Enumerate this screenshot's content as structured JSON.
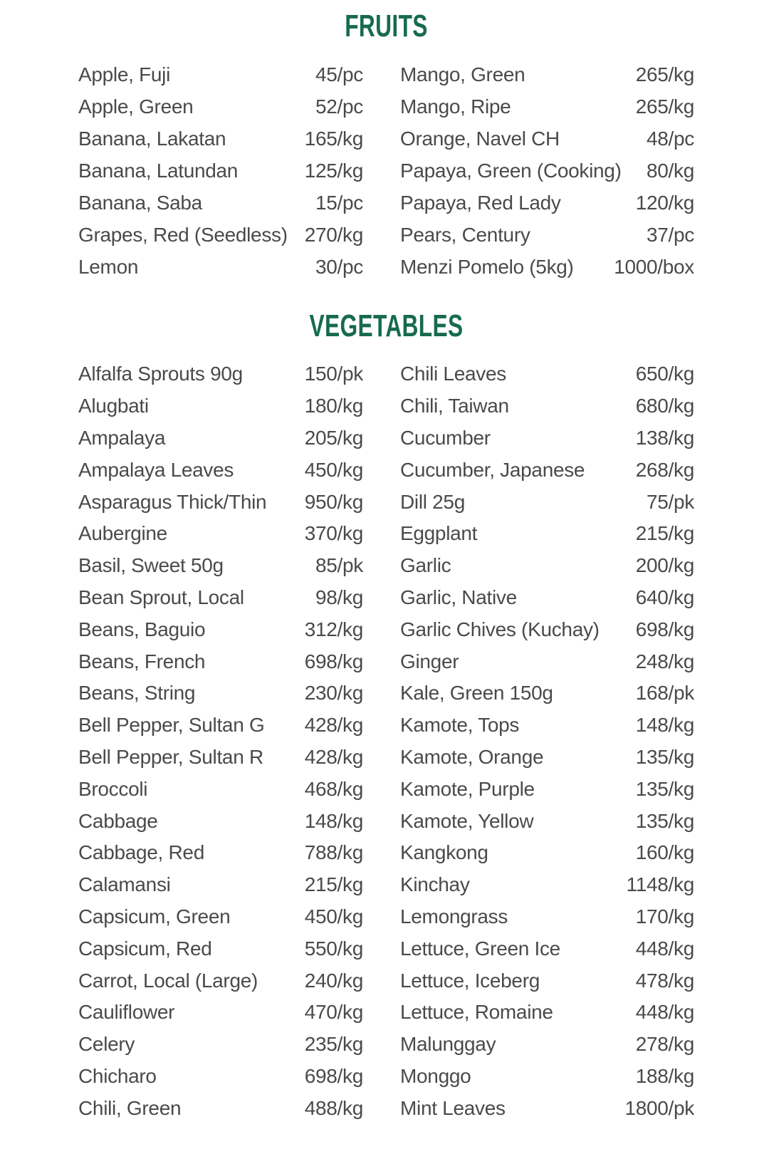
{
  "colors": {
    "accent_green": "#176B4D",
    "item_text_gray": "#4A4A4C",
    "background": "#FFFFFF"
  },
  "sections": [
    {
      "title": "FRUITS",
      "columns": {
        "left": [
          {
            "name": "Apple, Fuji",
            "price": "45/pc"
          },
          {
            "name": "Apple, Green",
            "price": "52/pc"
          },
          {
            "name": "Banana, Lakatan",
            "price": "165/kg"
          },
          {
            "name": "Banana, Latundan",
            "price": "125/kg"
          },
          {
            "name": "Banana, Saba",
            "price": "15/pc"
          },
          {
            "name": "Grapes, Red (Seedless)",
            "price": "270/kg"
          },
          {
            "name": "Lemon",
            "price": "30/pc"
          }
        ],
        "right": [
          {
            "name": "Mango, Green",
            "price": "265/kg"
          },
          {
            "name": "Mango, Ripe",
            "price": "265/kg"
          },
          {
            "name": "Orange, Navel CH",
            "price": "48/pc"
          },
          {
            "name": "Papaya, Green (Cooking)",
            "price": "80/kg"
          },
          {
            "name": "Papaya, Red Lady",
            "price": "120/kg"
          },
          {
            "name": "Pears, Century",
            "price": "37/pc"
          },
          {
            "name": "Menzi Pomelo (5kg)",
            "price": "1000/box"
          }
        ]
      }
    },
    {
      "title": "VEGETABLES",
      "columns": {
        "left": [
          {
            "name": "Alfalfa Sprouts 90g",
            "price": "150/pk"
          },
          {
            "name": "Alugbati",
            "price": "180/kg"
          },
          {
            "name": "Ampalaya",
            "price": "205/kg"
          },
          {
            "name": "Ampalaya Leaves",
            "price": "450/kg"
          },
          {
            "name": "Asparagus Thick/Thin",
            "price": "950/kg"
          },
          {
            "name": "Aubergine",
            "price": "370/kg"
          },
          {
            "name": "Basil, Sweet 50g",
            "price": "85/pk"
          },
          {
            "name": "Bean Sprout, Local",
            "price": "98/kg"
          },
          {
            "name": "Beans, Baguio",
            "price": "312/kg"
          },
          {
            "name": "Beans, French",
            "price": "698/kg"
          },
          {
            "name": "Beans, String",
            "price": "230/kg"
          },
          {
            "name": "Bell Pepper, Sultan G",
            "price": "428/kg"
          },
          {
            "name": "Bell Pepper, Sultan R",
            "price": "428/kg"
          },
          {
            "name": "Broccoli",
            "price": "468/kg"
          },
          {
            "name": "Cabbage",
            "price": "148/kg"
          },
          {
            "name": "Cabbage, Red",
            "price": "788/kg"
          },
          {
            "name": "Calamansi",
            "price": "215/kg"
          },
          {
            "name": "Capsicum, Green",
            "price": "450/kg"
          },
          {
            "name": "Capsicum, Red",
            "price": "550/kg"
          },
          {
            "name": "Carrot, Local (Large)",
            "price": "240/kg"
          },
          {
            "name": "Cauliflower",
            "price": "470/kg"
          },
          {
            "name": "Celery",
            "price": "235/kg"
          },
          {
            "name": "Chicharo",
            "price": "698/kg"
          },
          {
            "name": "Chili, Green",
            "price": "488/kg"
          }
        ],
        "right": [
          {
            "name": "Chili Leaves",
            "price": "650/kg"
          },
          {
            "name": "Chili, Taiwan",
            "price": "680/kg"
          },
          {
            "name": "Cucumber",
            "price": "138/kg"
          },
          {
            "name": "Cucumber, Japanese",
            "price": "268/kg"
          },
          {
            "name": "Dill 25g",
            "price": "75/pk"
          },
          {
            "name": "Eggplant",
            "price": "215/kg"
          },
          {
            "name": "Garlic",
            "price": "200/kg"
          },
          {
            "name": "Garlic, Native",
            "price": "640/kg"
          },
          {
            "name": "Garlic Chives (Kuchay)",
            "price": "698/kg"
          },
          {
            "name": "Ginger",
            "price": "248/kg"
          },
          {
            "name": "Kale, Green 150g",
            "price": "168/pk"
          },
          {
            "name": "Kamote, Tops",
            "price": "148/kg"
          },
          {
            "name": "Kamote, Orange",
            "price": "135/kg"
          },
          {
            "name": "Kamote, Purple",
            "price": "135/kg"
          },
          {
            "name": "Kamote, Yellow",
            "price": "135/kg"
          },
          {
            "name": "Kangkong",
            "price": "160/kg"
          },
          {
            "name": "Kinchay",
            "price": "1148/kg"
          },
          {
            "name": "Lemongrass",
            "price": "170/kg"
          },
          {
            "name": "Lettuce, Green Ice",
            "price": "448/kg"
          },
          {
            "name": "Lettuce, Iceberg",
            "price": "478/kg"
          },
          {
            "name": "Lettuce, Romaine",
            "price": "448/kg"
          },
          {
            "name": "Malunggay",
            "price": "278/kg"
          },
          {
            "name": "Monggo",
            "price": "188/kg"
          },
          {
            "name": "Mint Leaves",
            "price": "1800/pk"
          }
        ]
      }
    }
  ]
}
